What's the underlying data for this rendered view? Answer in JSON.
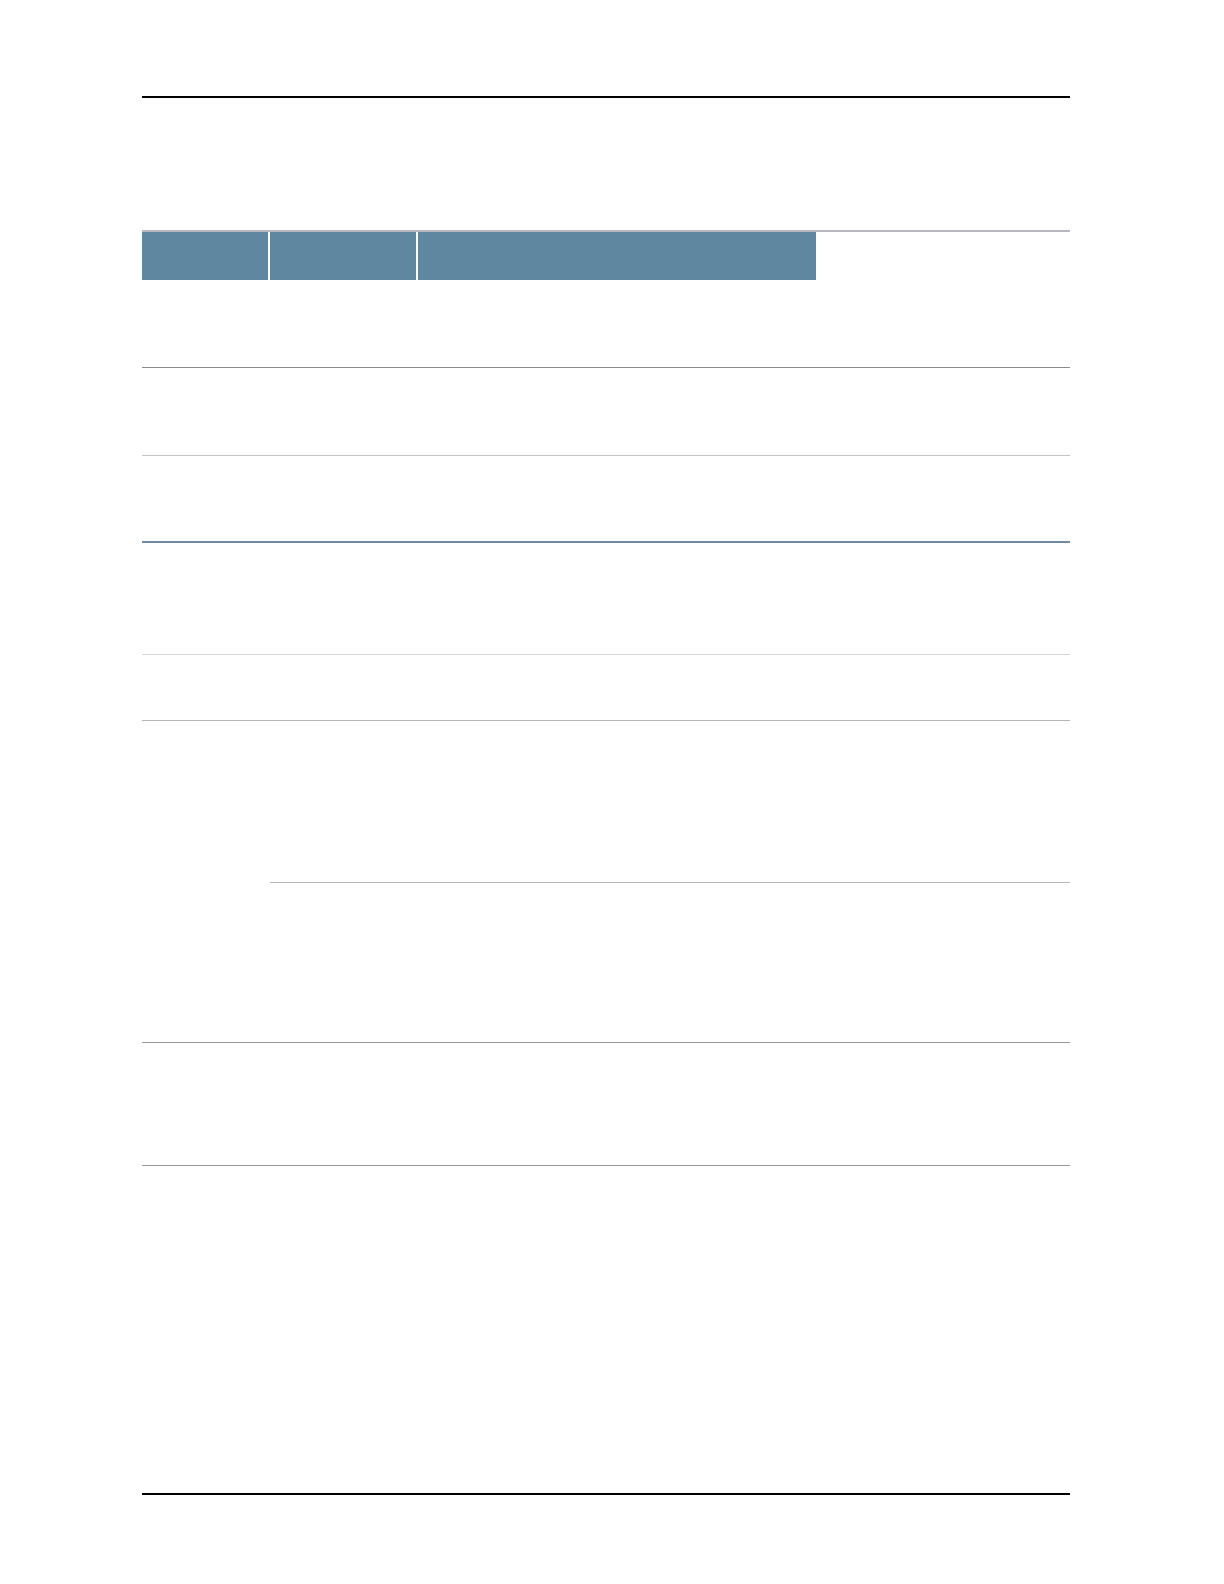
{
  "colors": {
    "header_fill": "#5f87a0",
    "header_separator": "#ffffff",
    "rule": "#000000",
    "row_divider": "#a8a8a8",
    "section_divider": "#6f8aa0"
  }
}
